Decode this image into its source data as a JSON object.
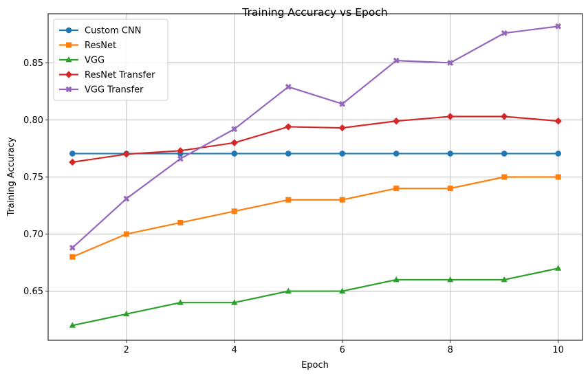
{
  "chart_data": {
    "type": "line",
    "title": "Training Accuracy vs Epoch",
    "xlabel": "Epoch",
    "ylabel": "Training Accuracy",
    "x": [
      1,
      2,
      3,
      4,
      5,
      6,
      7,
      8,
      9,
      10
    ],
    "xlim": [
      0.55,
      10.45
    ],
    "ylim": [
      0.607,
      0.893
    ],
    "xticks": [
      2,
      4,
      6,
      8,
      10
    ],
    "yticks": [
      0.65,
      0.7,
      0.75,
      0.8,
      0.85
    ],
    "xtick_labels": [
      "2",
      "4",
      "6",
      "8",
      "10"
    ],
    "ytick_labels": [
      "0.65",
      "0.70",
      "0.75",
      "0.80",
      "0.85"
    ],
    "grid": true,
    "legend_position": "top-left",
    "series": [
      {
        "name": "Custom CNN",
        "color": "#1f77b4",
        "marker": "circle",
        "values": [
          0.7705,
          0.7705,
          0.7705,
          0.7705,
          0.7705,
          0.7705,
          0.7705,
          0.7705,
          0.7705,
          0.7705
        ]
      },
      {
        "name": "ResNet",
        "color": "#ff7f0e",
        "marker": "square",
        "values": [
          0.68,
          0.7,
          0.71,
          0.72,
          0.73,
          0.73,
          0.74,
          0.74,
          0.75,
          0.75
        ]
      },
      {
        "name": "VGG",
        "color": "#2ca02c",
        "marker": "triangle",
        "values": [
          0.62,
          0.63,
          0.64,
          0.64,
          0.65,
          0.65,
          0.66,
          0.66,
          0.66,
          0.67
        ]
      },
      {
        "name": "ResNet Transfer",
        "color": "#d62728",
        "marker": "diamond",
        "values": [
          0.763,
          0.77,
          0.773,
          0.78,
          0.794,
          0.793,
          0.799,
          0.803,
          0.803,
          0.799
        ]
      },
      {
        "name": "VGG Transfer",
        "color": "#9467bd",
        "marker": "x",
        "values": [
          0.688,
          0.731,
          0.766,
          0.792,
          0.829,
          0.814,
          0.852,
          0.85,
          0.876,
          0.882
        ]
      }
    ]
  }
}
